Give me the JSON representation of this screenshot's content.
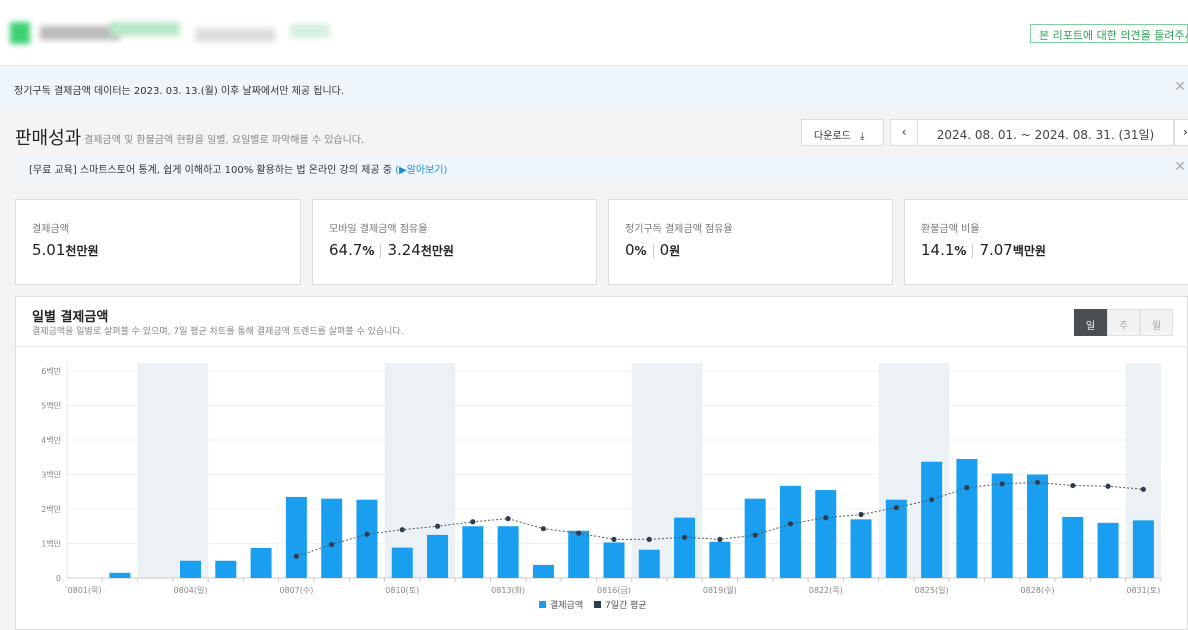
{
  "header": {
    "feedback_label": "본 리포트에 대한 의견을 들려주세요"
  },
  "notice": {
    "text": "정기구독 결제금액 데이터는 2023. 03. 13.(월) 이후 날짜에서만 제공 됩니다."
  },
  "page": {
    "title": "판매성과",
    "subtitle": "결제금액 및 환불금액 현황을 일별, 요일별로 파악해볼 수 있습니다.",
    "download_label": "다운로드",
    "prev_label": "‹",
    "next_label": "›",
    "date_range": "2024. 08. 01. ~ 2024. 08. 31. (31일)"
  },
  "edu": {
    "text": "[무료 교육] 스마트스토어 통계, 쉽게 이해하고 100% 활용하는 법 온라인 강의 제공 중",
    "link": "(▶알아보기)"
  },
  "cards": [
    {
      "label": "결제금액",
      "value": "5.01",
      "unit": "천만원"
    },
    {
      "label": "모바일 결제금액 점유율",
      "pct": "64.7",
      "pct_unit": "%",
      "value": "3.24",
      "unit": "천만원"
    },
    {
      "label": "정기구독 결제금액 점유율",
      "pct": "0",
      "pct_unit": "%",
      "value": "0",
      "unit": "원"
    },
    {
      "label": "환불금액 비율",
      "pct": "14.1",
      "pct_unit": "%",
      "value": "7.07",
      "unit": "백만원"
    }
  ],
  "chart_panel": {
    "title": "일별 결제금액",
    "subtitle": "결제금액을 일별로 살펴볼 수 있으며, 7일 평균 차트를 통해 결제금액 트렌드를 살펴볼 수 있습니다.",
    "segments": [
      "일",
      "주",
      "월"
    ],
    "active_segment": "일"
  },
  "chart_data": {
    "type": "bar",
    "ylim": [
      0,
      6
    ],
    "yticks": [
      "0",
      "1백만",
      "2백만",
      "3백만",
      "4백만",
      "5백만",
      "6백만"
    ],
    "xtick_labels": [
      "0801(목)",
      "0804(일)",
      "0807(수)",
      "0810(토)",
      "0813(화)",
      "0816(금)",
      "0819(월)",
      "0822(목)",
      "0825(일)",
      "0828(수)",
      "0831(토)"
    ],
    "xtick_days": [
      1,
      4,
      7,
      10,
      13,
      16,
      19,
      22,
      25,
      28,
      31
    ],
    "weekend_days": [
      3,
      4,
      10,
      11,
      17,
      18,
      24,
      25,
      31
    ],
    "grid": true,
    "legend_position": "bottom",
    "colors": {
      "bar": "#1a9ff0",
      "line": "#2d3e50",
      "weekend": "#ecf1f5"
    },
    "series": [
      {
        "name": "결제금액",
        "type": "bar",
        "unit": "백만원",
        "values": [
          0,
          0.15,
          0,
          0.5,
          0.5,
          0.87,
          2.35,
          2.3,
          2.27,
          0.88,
          1.25,
          1.5,
          1.5,
          0.38,
          1.37,
          1.03,
          0.82,
          1.75,
          1.05,
          2.3,
          2.67,
          2.55,
          1.7,
          2.27,
          3.37,
          3.45,
          3.03,
          3.0,
          1.77,
          1.6,
          1.67
        ]
      },
      {
        "name": "7일간 평균",
        "type": "line",
        "unit": "백만원",
        "values": [
          null,
          null,
          null,
          null,
          null,
          null,
          0.63,
          0.97,
          1.27,
          1.4,
          1.5,
          1.63,
          1.72,
          1.43,
          1.3,
          1.12,
          1.12,
          1.18,
          1.12,
          1.24,
          1.57,
          1.75,
          1.84,
          2.04,
          2.27,
          2.62,
          2.73,
          2.77,
          2.68,
          2.66,
          2.57
        ]
      }
    ]
  }
}
